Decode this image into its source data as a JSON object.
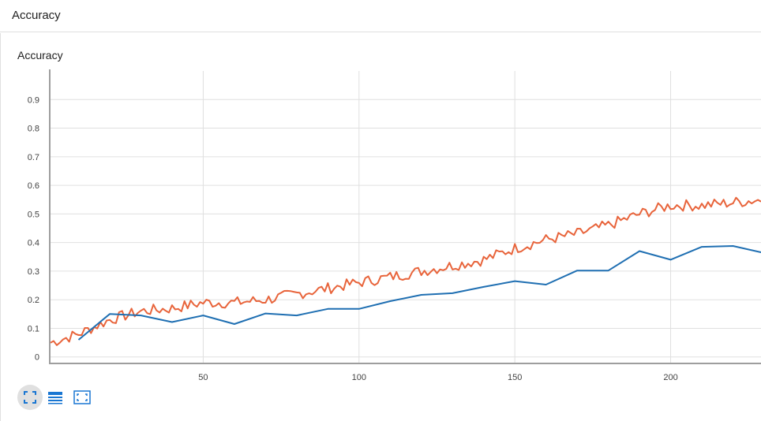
{
  "header": {
    "title": "Accuracy"
  },
  "card": {
    "title": "Accuracy"
  },
  "colors": {
    "train": "#e8643b",
    "eval": "#1f6fb2",
    "grid": "#e0e0e0",
    "axis": "#9e9e9e",
    "tick_text": "#424242",
    "toolbar_icon": "#1976d2",
    "toolbar_active_bg": "#e0e0e0"
  },
  "toolbar": {
    "buttons": [
      {
        "icon": "fit-screen-icon",
        "active": true
      },
      {
        "icon": "list-lines-icon",
        "active": false
      },
      {
        "icon": "expand-frame-icon",
        "active": false
      }
    ]
  },
  "chart_data": {
    "type": "line",
    "title": "Accuracy",
    "xlabel": "",
    "ylabel": "",
    "xlim": [
      1,
      229
    ],
    "ylim": [
      -0.02,
      1.0
    ],
    "x_ticks": [
      50,
      100,
      150,
      200
    ],
    "y_ticks": [
      0,
      0.1,
      0.2,
      0.3,
      0.4,
      0.5,
      0.6,
      0.7,
      0.8,
      0.9
    ],
    "y_tick_labels": [
      "0",
      "0.1",
      "0.2",
      "0.3",
      "0.4",
      "0.5",
      "0.6",
      "0.7",
      "0.8",
      "0.9"
    ],
    "grid": true,
    "series": [
      {
        "color": "#e8643b",
        "x": [
          1,
          10,
          20,
          30,
          40,
          50,
          60,
          70,
          80,
          90,
          100,
          110,
          120,
          130,
          140,
          150,
          160,
          170,
          180,
          190,
          200,
          210,
          220,
          229
        ],
        "values": [
          0.05,
          0.08,
          0.13,
          0.16,
          0.17,
          0.19,
          0.19,
          0.2,
          0.22,
          0.24,
          0.26,
          0.28,
          0.3,
          0.32,
          0.34,
          0.38,
          0.41,
          0.43,
          0.46,
          0.5,
          0.53,
          0.53,
          0.54,
          0.55
        ],
        "noise": 0.02
      },
      {
        "color": "#1f6fb2",
        "x": [
          10,
          20,
          30,
          40,
          50,
          60,
          70,
          80,
          90,
          100,
          110,
          120,
          130,
          140,
          150,
          160,
          170,
          180,
          190,
          200,
          210,
          220,
          229
        ],
        "values": [
          0.06,
          0.15,
          0.145,
          0.122,
          0.145,
          0.115,
          0.152,
          0.145,
          0.168,
          0.168,
          0.195,
          0.217,
          0.223,
          0.245,
          0.265,
          0.253,
          0.302,
          0.302,
          0.37,
          0.34,
          0.385,
          0.388,
          0.366
        ]
      }
    ]
  }
}
